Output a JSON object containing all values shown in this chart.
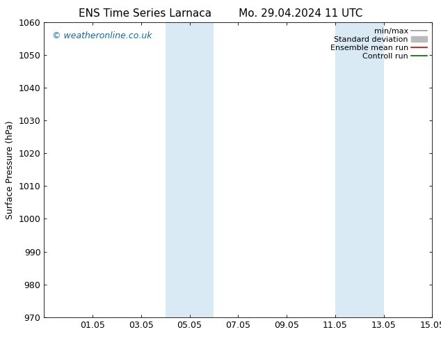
{
  "title": "ENS Time Series Larnaca        Mo. 29.04.2024 11 UTC",
  "ylabel": "Surface Pressure (hPa)",
  "ylim": [
    970,
    1060
  ],
  "yticks": [
    970,
    980,
    990,
    1000,
    1010,
    1020,
    1030,
    1040,
    1050,
    1060
  ],
  "xlim": [
    0,
    16
  ],
  "xtick_positions": [
    2,
    4,
    6,
    8,
    10,
    12,
    14,
    16
  ],
  "xtick_labels": [
    "01.05",
    "03.05",
    "05.05",
    "07.05",
    "09.05",
    "11.05",
    "13.05",
    "15.05"
  ],
  "shaded_bands": [
    {
      "start": 5,
      "end": 7
    },
    {
      "start": 12,
      "end": 14
    }
  ],
  "band_color": "#daeaf5",
  "background_color": "#ffffff",
  "watermark": "© weatheronline.co.uk",
  "watermark_color": "#1a6699",
  "watermark_fontsize": 9,
  "legend_items": [
    {
      "label": "min/max",
      "color": "#999999",
      "lw": 1.2,
      "patch": false
    },
    {
      "label": "Standard deviation",
      "color": "#bbbbbb",
      "lw": 6,
      "patch": true
    },
    {
      "label": "Ensemble mean run",
      "color": "#cc0000",
      "lw": 1.2,
      "patch": false
    },
    {
      "label": "Controll run",
      "color": "#006600",
      "lw": 1.2,
      "patch": false
    }
  ],
  "title_fontsize": 11,
  "ylabel_fontsize": 9,
  "tick_fontsize": 9,
  "legend_fontsize": 8
}
